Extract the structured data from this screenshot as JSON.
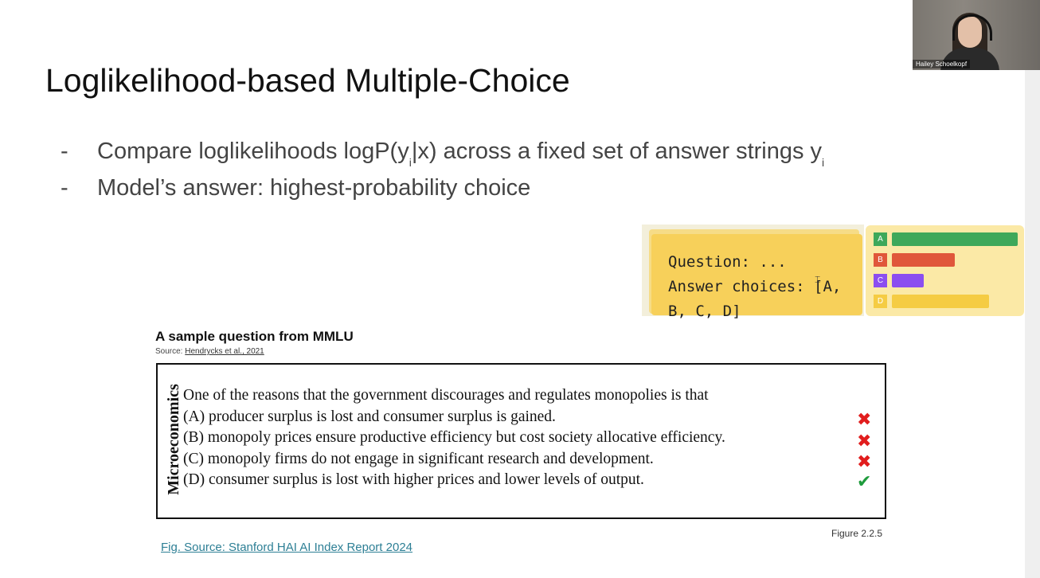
{
  "slide": {
    "title": "Loglikelihood-based Multiple-Choice",
    "bullets": [
      {
        "dash": "-",
        "pre": "Compare loglikelihoods logP(y",
        "sub1": "i",
        "mid": "|x) across a fixed set of answer strings y",
        "sub2": "i"
      },
      {
        "dash": "-",
        "text": "Model’s answer: highest-probability choice"
      }
    ]
  },
  "video": {
    "participant_name": "Hailey Schoelkopf"
  },
  "prompt_card": {
    "line1": "Question: ...",
    "line2": "Answer choices: [A,",
    "line3": "B, C, D]"
  },
  "bar_chart": {
    "bars": [
      {
        "label": "A",
        "value": 1.0,
        "color": "#3ea85a"
      },
      {
        "label": "B",
        "value": 0.5,
        "color": "#e0573a"
      },
      {
        "label": "C",
        "value": 0.25,
        "color": "#8b4ef0"
      },
      {
        "label": "D",
        "value": 0.77,
        "color": "#f5cc43"
      }
    ]
  },
  "figure": {
    "title": "A sample question from MMLU",
    "source_prefix": "Source: ",
    "source_link": "Hendrycks et al., 2021",
    "subject": "Microeconomics",
    "question": "One of the reasons that the government discourages and regulates monopolies is that",
    "options": [
      {
        "text": "(A) producer surplus is lost and consumer surplus is gained.",
        "mark": "✖",
        "correct": false
      },
      {
        "text": "(B) monopoly prices ensure productive efficiency but cost society allocative efficiency.",
        "mark": "✖",
        "correct": false
      },
      {
        "text": "(C) monopoly firms do not engage in significant research and development.",
        "mark": "✖",
        "correct": false
      },
      {
        "text": "(D) consumer surplus is lost with higher prices and lower levels of output.",
        "mark": "✔",
        "correct": true
      }
    ],
    "figure_number": "Figure 2.2.5"
  },
  "fig_link": "Fig. Source: Stanford HAI AI Index Report 2024",
  "icons": {
    "cursor": "text-cursor-icon",
    "wrong": "cross-mark-icon",
    "right": "check-mark-icon"
  }
}
